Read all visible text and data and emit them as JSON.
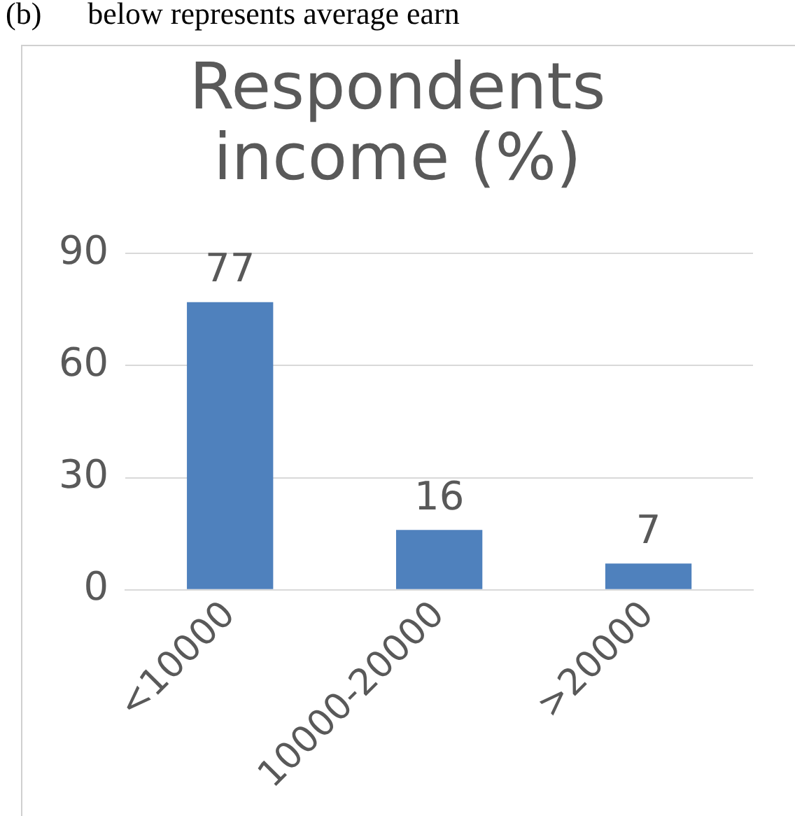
{
  "chart_data": {
    "type": "bar",
    "title": "Respondents income (%)",
    "categories": [
      "<10000",
      "10000-20000",
      ">20000"
    ],
    "values": [
      77,
      16,
      7
    ],
    "color": "#4f81bd",
    "ylim": [
      0,
      90
    ],
    "yticks": [
      0,
      30,
      60,
      90
    ],
    "grid": "y",
    "data_labels": true,
    "legend": false,
    "annotations": [
      "(b)      below represents average earn"
    ]
  }
}
